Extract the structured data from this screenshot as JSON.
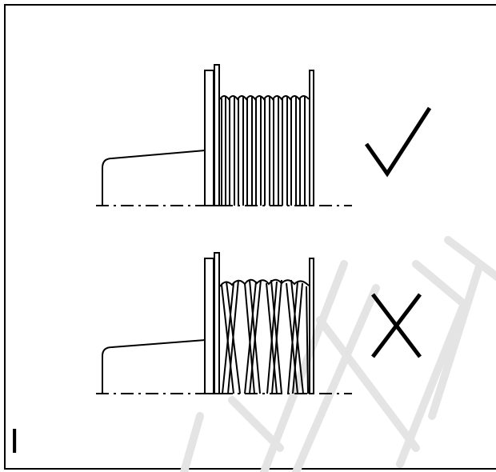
{
  "figure": {
    "label": "I",
    "panels": [
      {
        "id": "correct",
        "winding": "even",
        "mark": "check-icon"
      },
      {
        "id": "incorrect",
        "winding": "crossed",
        "mark": "cross-icon"
      }
    ],
    "watermark_color": "#e6e6e6",
    "line_color": "#000000"
  }
}
